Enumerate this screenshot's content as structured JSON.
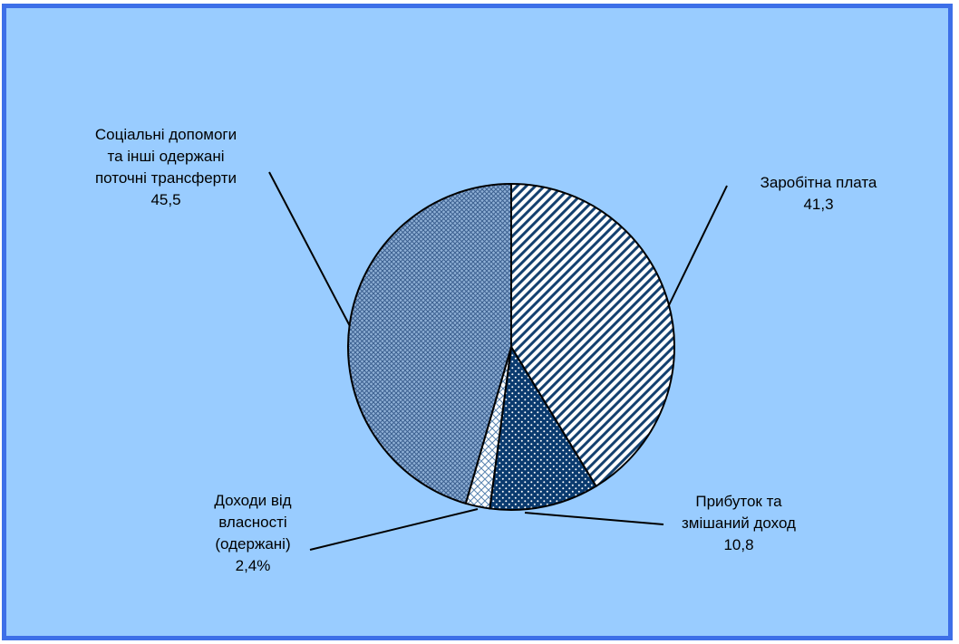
{
  "colors": {
    "frame_border": "#3d6fe8",
    "plot_background": "#99ccff",
    "slice_fill_light": "#ffffff",
    "slice_fill_dark": "#0a3a6e",
    "slice_pattern_stroke": "#13406f",
    "outline": "#000000"
  },
  "chart_data": {
    "type": "pie",
    "start": "12 o'clock, clockwise",
    "legend": "none",
    "slices": [
      {
        "key": "wages",
        "label_lines": [
          "Заробітна плата"
        ],
        "value_text": "41,3",
        "value": 41.3,
        "pattern": "diagonal-stripes"
      },
      {
        "key": "profit",
        "label_lines": [
          "Прибуток та",
          "змішаний доход"
        ],
        "value_text": "10,8",
        "value": 10.8,
        "pattern": "dots-on-dark"
      },
      {
        "key": "property",
        "label_lines": [
          "Доходи від",
          "власності",
          "(одержані)"
        ],
        "value_text": "2,4%",
        "value": 2.4,
        "pattern": "light-crosshatch"
      },
      {
        "key": "social",
        "label_lines": [
          "Соціальні допомоги",
          "та інші одержані",
          "поточні трансферти"
        ],
        "value_text": "45,5",
        "value": 45.5,
        "pattern": "fine-crosshatch"
      }
    ]
  }
}
